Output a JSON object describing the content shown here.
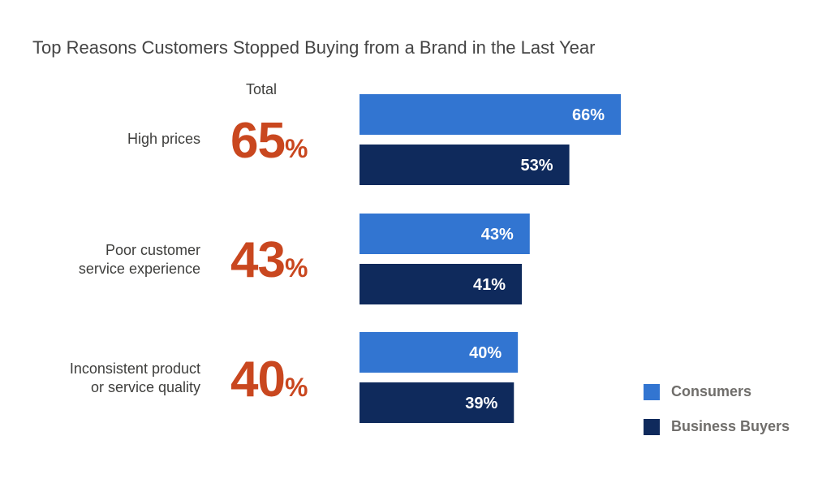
{
  "chart_data": {
    "type": "bar",
    "orientation": "horizontal",
    "title": "Top Reasons Customers Stopped Buying from a Brand in the Last Year",
    "total_header": "Total",
    "categories": [
      {
        "lines": [
          "High prices"
        ],
        "total": "65",
        "total_suffix": "%"
      },
      {
        "lines": [
          "Poor customer",
          "service experience"
        ],
        "total": "43",
        "total_suffix": "%"
      },
      {
        "lines": [
          "Inconsistent product",
          "or service quality"
        ],
        "total": "40",
        "total_suffix": "%"
      }
    ],
    "series": [
      {
        "name": "Consumers",
        "color": "#3275d1",
        "values": [
          66,
          43,
          40
        ],
        "labels": [
          "66%",
          "43%",
          "40%"
        ]
      },
      {
        "name": "Business Buyers",
        "color": "#0f2a5c",
        "values": [
          53,
          41,
          39
        ],
        "labels": [
          "53%",
          "41%",
          "39%"
        ]
      }
    ],
    "xlim": [
      0,
      100
    ],
    "grid": false,
    "legend_position": "bottom-right"
  }
}
